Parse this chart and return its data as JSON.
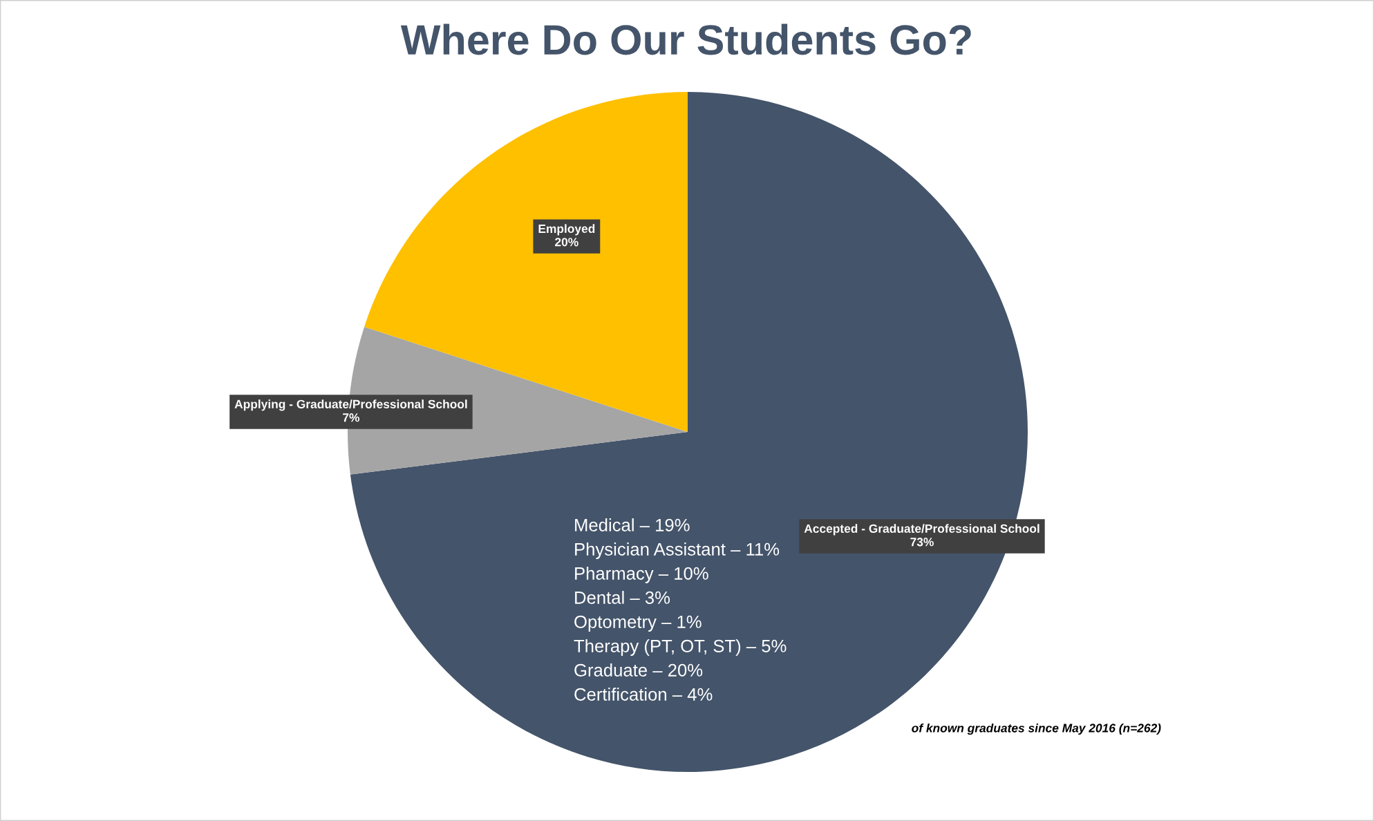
{
  "chart_data": {
    "type": "pie",
    "title": "Where Do Our Students Go?",
    "categories": [
      "Accepted - Graduate/Professional School",
      "Applying - Graduate/Professional School",
      "Employed"
    ],
    "values": [
      73,
      7,
      20
    ],
    "colors": [
      "#44546a",
      "#a5a5a5",
      "#ffc000"
    ],
    "value_labels": [
      "73%",
      "7%",
      "20%"
    ],
    "annotations": [
      "Medical – 19%",
      "Physician Assistant – 11%",
      "Pharmacy – 10%",
      "Dental – 3%",
      "Optometry – 1%",
      "Therapy (PT, OT, ST) – 5%",
      "Graduate – 20%",
      "Certification – 4%",
      "of known graduates since May 2016 (n=262)"
    ]
  }
}
